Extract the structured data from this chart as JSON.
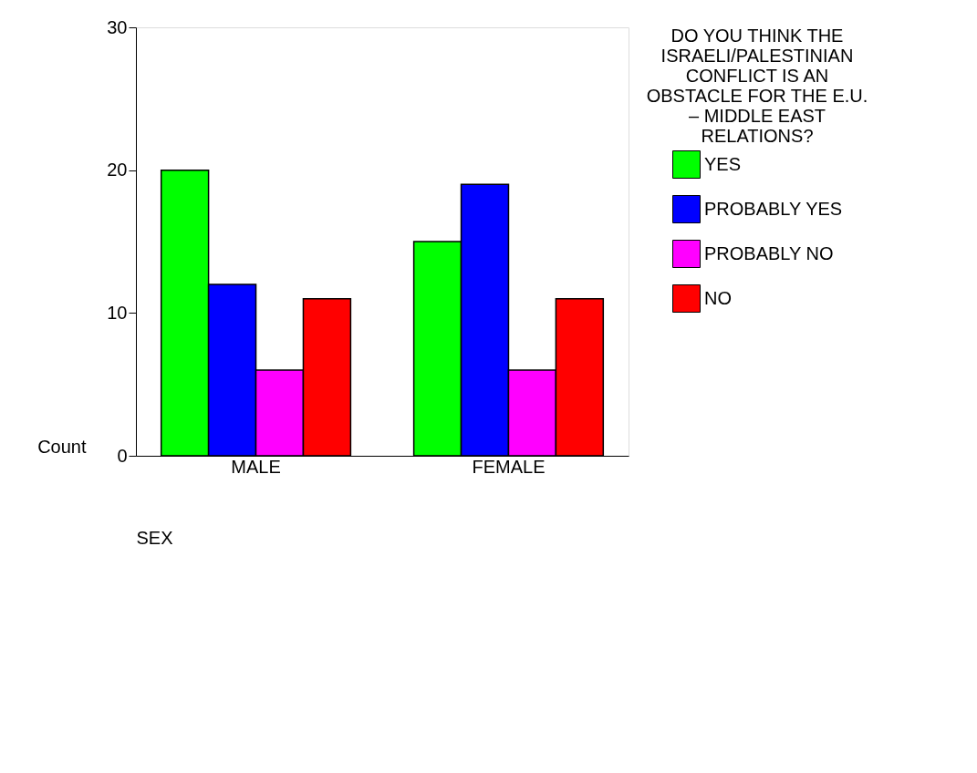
{
  "chart_data": {
    "type": "bar",
    "categories": [
      "MALE",
      "FEMALE"
    ],
    "xlabel": "SEX",
    "ylabel": "Count",
    "legend_title": "DO YOU THINK THE ISRAELI/PALESTINIAN CONFLICT IS AN OBSTACLE FOR THE E.U. – MIDDLE EAST RELATIONS?",
    "series": [
      {
        "name": "YES",
        "color": "#00ff00",
        "values": [
          20,
          15
        ]
      },
      {
        "name": "PROBABLY YES",
        "color": "#0000ff",
        "values": [
          12,
          19
        ]
      },
      {
        "name": "PROBABLY NO",
        "color": "#ff00ff",
        "values": [
          6,
          6
        ]
      },
      {
        "name": "NO",
        "color": "#ff0000",
        "values": [
          11,
          11
        ]
      }
    ],
    "ylim": [
      0,
      30
    ],
    "yticks": [
      0,
      10,
      20,
      30
    ],
    "grid": false,
    "legend": "right"
  }
}
